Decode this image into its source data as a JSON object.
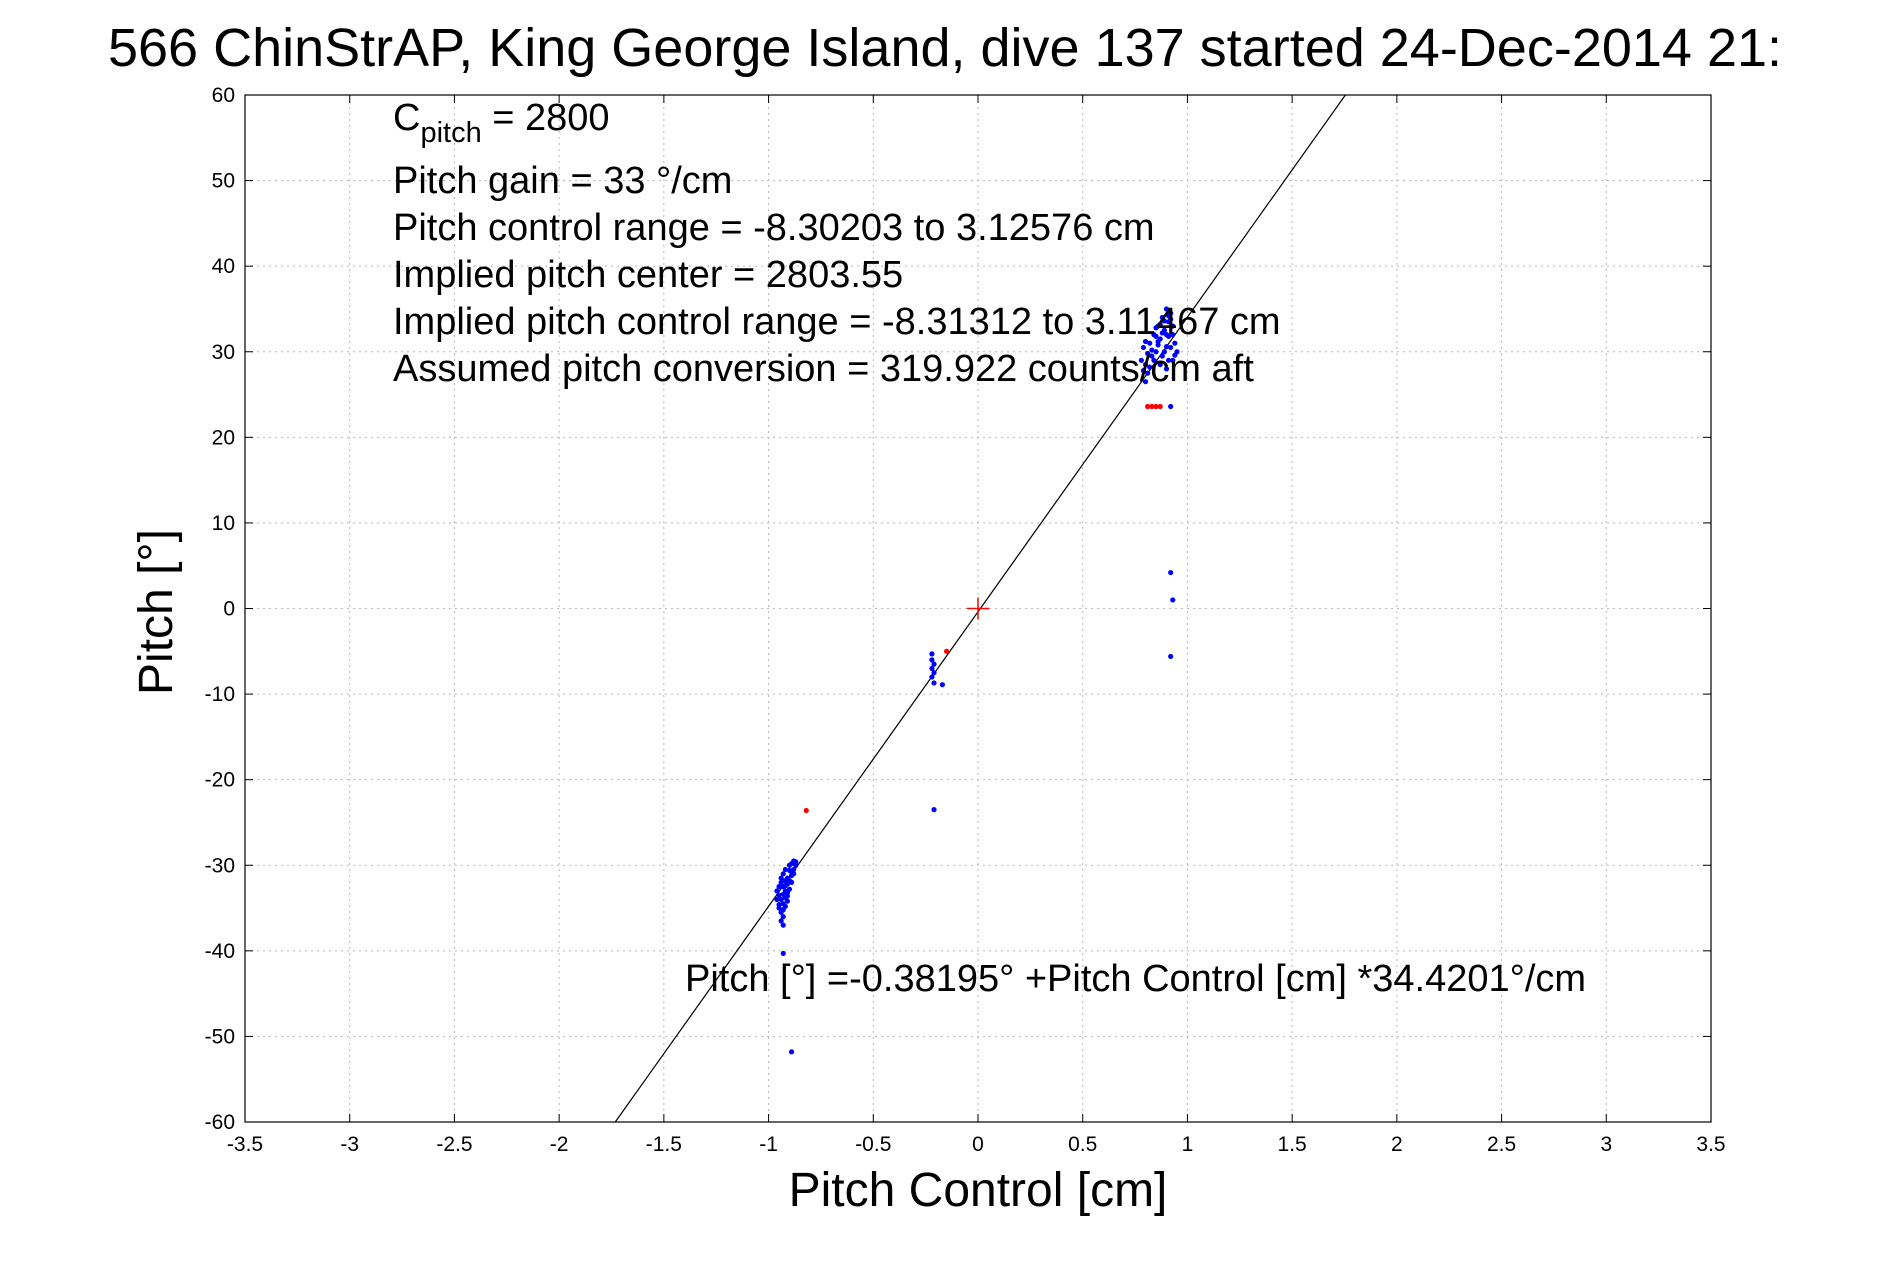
{
  "colors": {
    "good_points": "#0000ff",
    "flagged_points": "#ff0000",
    "fit_line": "#000000",
    "center_marker": "#ff0000"
  },
  "chart_data": {
    "type": "scatter",
    "title": "566 ChinStrAP, King George Island, dive 137 started 24-Dec-2014 21:",
    "xlabel": "Pitch Control [cm]",
    "ylabel": "Pitch [°]",
    "xlim": [
      -3.5,
      3.5
    ],
    "ylim": [
      -60,
      60
    ],
    "xticks": [
      -3.5,
      -3,
      -2.5,
      -2,
      -1.5,
      -1,
      -0.5,
      0,
      0.5,
      1,
      1.5,
      2,
      2.5,
      3,
      3.5
    ],
    "xtick_labels": [
      "-3.5",
      "-3",
      "-2.5",
      "-2",
      "-1.5",
      "-1",
      "-0.5",
      "0",
      "0.5",
      "1",
      "1.5",
      "2",
      "2.5",
      "3",
      "3.5"
    ],
    "yticks": [
      60,
      50,
      40,
      30,
      20,
      10,
      0,
      -10,
      -20,
      -30,
      -40,
      -50,
      -60
    ],
    "ytick_labels": [
      "60",
      "50",
      "40",
      "30",
      "20",
      "10",
      "0",
      "-10",
      "-20",
      "-30",
      "-40",
      "-50",
      "-60"
    ],
    "grid": true,
    "annotations": {
      "cpitch_main": "C",
      "cpitch_sub": "pitch",
      "cpitch_value": " = 2800",
      "lines": [
        "Pitch gain = 33 °/cm",
        "Pitch control range = -8.30203 to 3.12576 cm",
        "Implied pitch center = 2803.55",
        "Implied pitch control range = -8.31312 to 3.11467 cm",
        "Assumed pitch conversion = 319.922 counts/cm aft"
      ],
      "fit_equation": "Pitch [°] =-0.38195° +Pitch Control [cm] *34.4201°/cm"
    },
    "fit_line": {
      "intercept": -0.38195,
      "slope": 34.4201
    },
    "center_marker": {
      "x": 0,
      "y": 0
    },
    "series": [
      {
        "color": "#0000ff",
        "points": [
          [
            -0.93,
            -31.0
          ],
          [
            -0.92,
            -30.5
          ],
          [
            -0.91,
            -31.5
          ],
          [
            -0.9,
            -30.0
          ],
          [
            -0.89,
            -29.8
          ],
          [
            -0.88,
            -29.5
          ],
          [
            -0.94,
            -32.0
          ],
          [
            -0.93,
            -32.5
          ],
          [
            -0.92,
            -33.0
          ],
          [
            -0.91,
            -32.2
          ],
          [
            -0.9,
            -31.8
          ],
          [
            -0.89,
            -31.2
          ],
          [
            -0.95,
            -33.5
          ],
          [
            -0.94,
            -34.0
          ],
          [
            -0.93,
            -34.5
          ],
          [
            -0.92,
            -33.8
          ],
          [
            -0.91,
            -33.2
          ],
          [
            -0.9,
            -32.8
          ],
          [
            -0.95,
            -35.0
          ],
          [
            -0.94,
            -35.5
          ],
          [
            -0.93,
            -36.0
          ],
          [
            -0.93,
            -37.0
          ],
          [
            -0.92,
            -34.8
          ],
          [
            -0.91,
            -34.2
          ],
          [
            -0.88,
            -30.5
          ],
          [
            -0.87,
            -30.0
          ],
          [
            -0.89,
            -30.8
          ],
          [
            -0.96,
            -33.0
          ],
          [
            -0.96,
            -34.0
          ],
          [
            -0.95,
            -32.5
          ],
          [
            -0.94,
            -31.5
          ],
          [
            -0.92,
            -31.8
          ],
          [
            -0.9,
            -30.6
          ],
          [
            -0.88,
            -31.0
          ],
          [
            -0.93,
            -35.2
          ],
          [
            -0.94,
            -36.5
          ],
          [
            -0.91,
            -33.6
          ],
          [
            -0.89,
            -32.0
          ],
          [
            -0.87,
            -29.6
          ],
          [
            -0.95,
            -34.6
          ],
          [
            -0.93,
            -33.4
          ],
          [
            -0.92,
            -32.4
          ],
          [
            -0.93,
            -40.3
          ],
          [
            -0.89,
            -51.8
          ],
          [
            -0.22,
            -5.3
          ],
          [
            -0.22,
            -6.0
          ],
          [
            -0.21,
            -6.5
          ],
          [
            -0.22,
            -7.0
          ],
          [
            -0.21,
            -7.5
          ],
          [
            -0.22,
            -8.0
          ],
          [
            -0.21,
            -8.7
          ],
          [
            -0.17,
            -8.9
          ],
          [
            -0.21,
            -23.5
          ],
          [
            0.78,
            29.0
          ],
          [
            0.79,
            30.5
          ],
          [
            0.8,
            28.5
          ],
          [
            0.81,
            27.5
          ],
          [
            0.8,
            26.5
          ],
          [
            0.82,
            31.0
          ],
          [
            0.83,
            29.5
          ],
          [
            0.84,
            32.0
          ],
          [
            0.85,
            30.0
          ],
          [
            0.86,
            33.0
          ],
          [
            0.87,
            31.5
          ],
          [
            0.88,
            34.0
          ],
          [
            0.89,
            32.5
          ],
          [
            0.9,
            35.0
          ],
          [
            0.91,
            33.5
          ],
          [
            0.92,
            34.5
          ],
          [
            0.93,
            32.0
          ],
          [
            0.92,
            30.5
          ],
          [
            0.91,
            29.0
          ],
          [
            0.9,
            28.0
          ],
          [
            0.89,
            30.0
          ],
          [
            0.88,
            29.5
          ],
          [
            0.87,
            28.5
          ],
          [
            0.86,
            30.8
          ],
          [
            0.85,
            31.8
          ],
          [
            0.84,
            29.0
          ],
          [
            0.83,
            30.2
          ],
          [
            0.82,
            28.2
          ],
          [
            0.81,
            29.8
          ],
          [
            0.8,
            31.2
          ],
          [
            0.79,
            27.8
          ],
          [
            0.94,
            31.0
          ],
          [
            0.95,
            30.0
          ],
          [
            0.93,
            29.0
          ],
          [
            0.92,
            33.8
          ],
          [
            0.91,
            31.8
          ],
          [
            0.9,
            30.6
          ],
          [
            0.89,
            33.6
          ],
          [
            0.88,
            32.2
          ],
          [
            0.87,
            33.2
          ],
          [
            0.86,
            31.2
          ],
          [
            0.85,
            32.8
          ],
          [
            0.93,
            33.0
          ],
          [
            0.94,
            29.6
          ],
          [
            0.9,
            32.0
          ],
          [
            0.91,
            34.2
          ],
          [
            0.92,
            23.6
          ],
          [
            0.92,
            4.2
          ],
          [
            0.93,
            1.0
          ],
          [
            0.92,
            -5.6
          ]
        ]
      },
      {
        "color": "#ff0000",
        "points": [
          [
            -0.82,
            -23.6
          ],
          [
            -0.15,
            -5.0
          ],
          [
            0.81,
            23.6
          ],
          [
            0.83,
            23.6
          ],
          [
            0.85,
            23.6
          ],
          [
            0.87,
            23.6
          ]
        ]
      }
    ]
  }
}
